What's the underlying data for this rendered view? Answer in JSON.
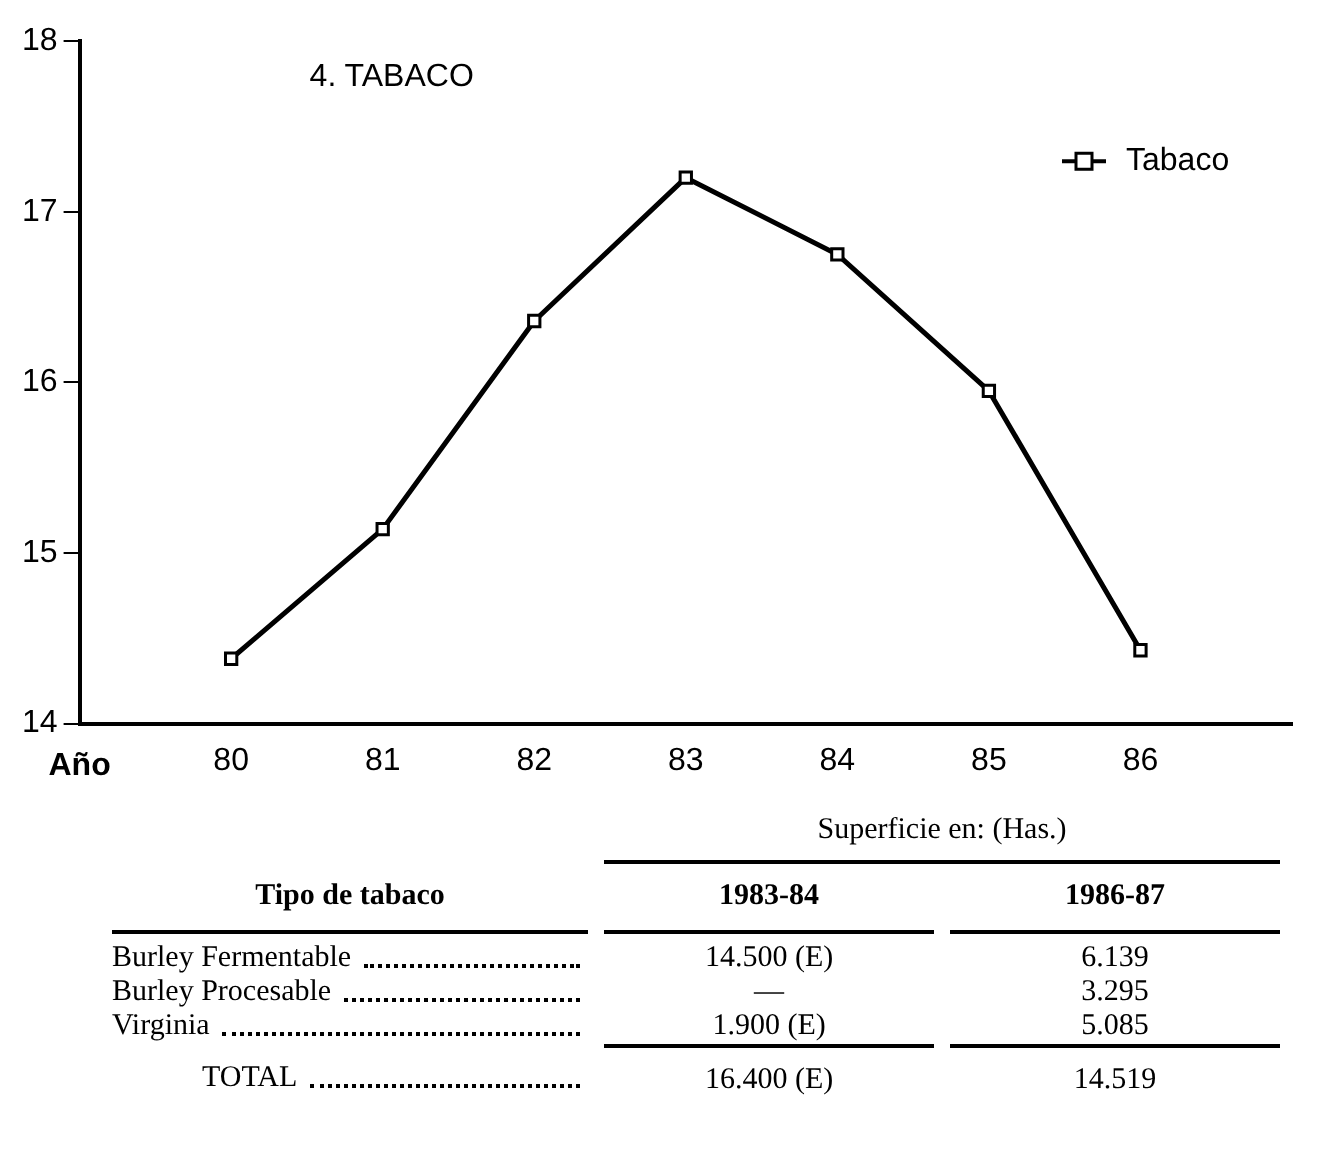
{
  "chart_data": [
    {
      "type": "line",
      "title": "4. TABACO",
      "xlabel": "Año",
      "x": [
        80,
        81,
        82,
        83,
        84,
        85,
        86
      ],
      "series": [
        {
          "name": "Tabaco",
          "color": "#000000",
          "values": [
            14.38,
            15.14,
            16.36,
            17.2,
            16.75,
            15.95,
            14.43
          ]
        }
      ],
      "xlim": [
        79,
        87
      ],
      "xticks": [
        80,
        81,
        82,
        83,
        84,
        85,
        86
      ],
      "ylim": [
        14,
        18
      ],
      "yticks": [
        14,
        15,
        16,
        17,
        18
      ],
      "grid": false,
      "legend": "top right",
      "marker": "square",
      "line_style": "solid"
    },
    {
      "type": "other",
      "title": "Superficie en: (Has.)",
      "categories": [
        "Tipo de tabaco",
        "1983-84",
        "1986-87"
      ],
      "y_categories": [
        "Burley Fermentable",
        "Burley Procesable",
        "Virginia",
        "TOTAL"
      ],
      "cell_labels": [
        [
          "14.500 (E)",
          "6.139"
        ],
        [
          "—",
          "3.295"
        ],
        [
          "1.900 (E)",
          "5.085"
        ],
        [
          "16.400 (E)",
          "14.519"
        ]
      ]
    }
  ]
}
